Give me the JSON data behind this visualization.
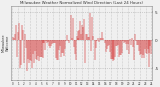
{
  "title": "Milwaukee Weather Normalized Wind Direction (Last 24 Hours)",
  "background_color": "#f0f0f0",
  "plot_bg_color": "#f0f0f0",
  "grid_color": "#aaaaaa",
  "bar_color": "#cc0000",
  "ylim": [
    -7,
    6
  ],
  "yticks": [
    -5,
    0,
    5
  ],
  "ytick_labels": [
    "-5",
    "0",
    "5"
  ],
  "num_points": 144,
  "seed": 42,
  "left_label": "Milwaukee\nWelcome",
  "figsize": [
    1.6,
    0.87
  ],
  "dpi": 100
}
